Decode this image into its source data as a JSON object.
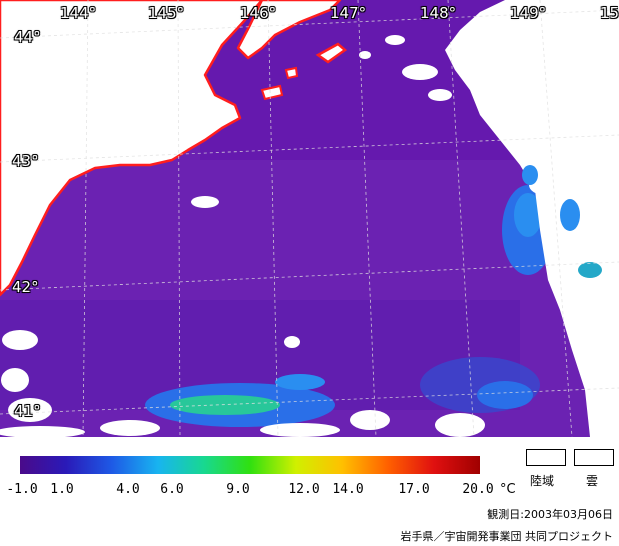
{
  "map": {
    "lon_labels": [
      "144°",
      "145°",
      "146°",
      "147°",
      "148°",
      "149°",
      "15"
    ],
    "lat_labels": [
      "44°",
      "43°",
      "42°",
      "41°"
    ],
    "coastline_color": "#ff2020",
    "sea_color": "#6a1fb0",
    "cloud_color": "#ffffff"
  },
  "legend": {
    "colorbar_colors": [
      "#4a0a8a",
      "#2a1ab8",
      "#1e5ae6",
      "#18b4f0",
      "#18d890",
      "#30e010",
      "#d0f000",
      "#ffc000",
      "#ff6000",
      "#e01010",
      "#a00000"
    ],
    "ticks": [
      "-1.0",
      "1.0",
      "4.0",
      "6.0",
      "9.0",
      "12.0",
      "14.0",
      "17.0",
      "20.0"
    ],
    "unit": "°C",
    "land_label": "陸域",
    "cloud_label": "雲"
  },
  "footer": {
    "observation_date": "観測日:2003年03月06日",
    "credit": "岩手県／宇宙開発事業団 共同プロジェクト"
  }
}
